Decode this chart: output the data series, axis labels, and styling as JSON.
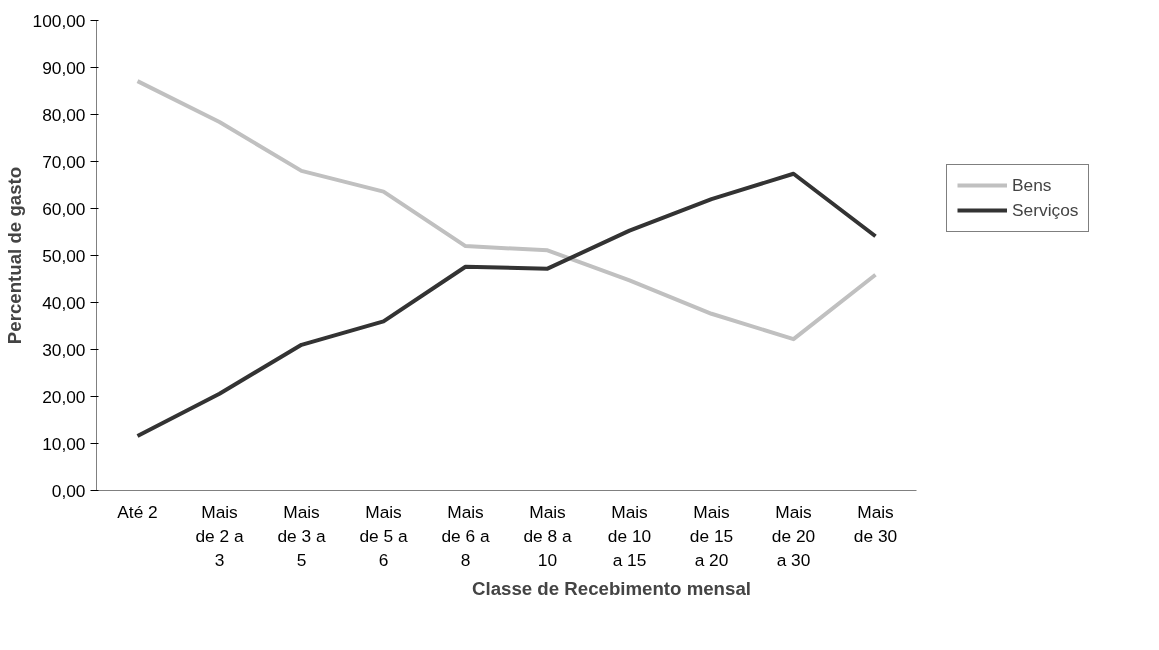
{
  "chart_data": {
    "type": "line",
    "xlabel": "Classe de Recebimento mensal",
    "ylabel": "Percentual de gasto",
    "categories": [
      "Até 2",
      "Mais de 2 a 3",
      "Mais de 3 a 5",
      "Mais de 5 a 6",
      "Mais de 6 a 8",
      "Mais de 8 a 10",
      "Mais de 10 a 15",
      "Mais de 15 a 20",
      "Mais de 20 a 30",
      "Mais de 30"
    ],
    "series": [
      {
        "name": "Bens",
        "color": "#c0c0c0",
        "values": [
          87.1,
          78.4,
          68.0,
          63.6,
          52.0,
          51.1,
          44.7,
          37.6,
          32.2,
          45.9
        ]
      },
      {
        "name": "Serviços",
        "color": "#333333",
        "values": [
          11.6,
          20.6,
          31.0,
          36.0,
          47.6,
          47.2,
          55.3,
          62.0,
          67.4,
          54.1
        ]
      }
    ],
    "ylim": [
      0,
      100
    ],
    "yticks": [
      {
        "value": 0,
        "label": "0,00"
      },
      {
        "value": 10,
        "label": "10,00"
      },
      {
        "value": 20,
        "label": "20,00"
      },
      {
        "value": 30,
        "label": "30,00"
      },
      {
        "value": 40,
        "label": "40,00"
      },
      {
        "value": 50,
        "label": "50,00"
      },
      {
        "value": 60,
        "label": "60,00"
      },
      {
        "value": 70,
        "label": "70,00"
      },
      {
        "value": 80,
        "label": "80,00"
      },
      {
        "value": 90,
        "label": "90,00"
      },
      {
        "value": 100,
        "label": "100,00"
      }
    ],
    "grid": false,
    "legend": "right",
    "marker": "none",
    "line_style": "solid"
  }
}
